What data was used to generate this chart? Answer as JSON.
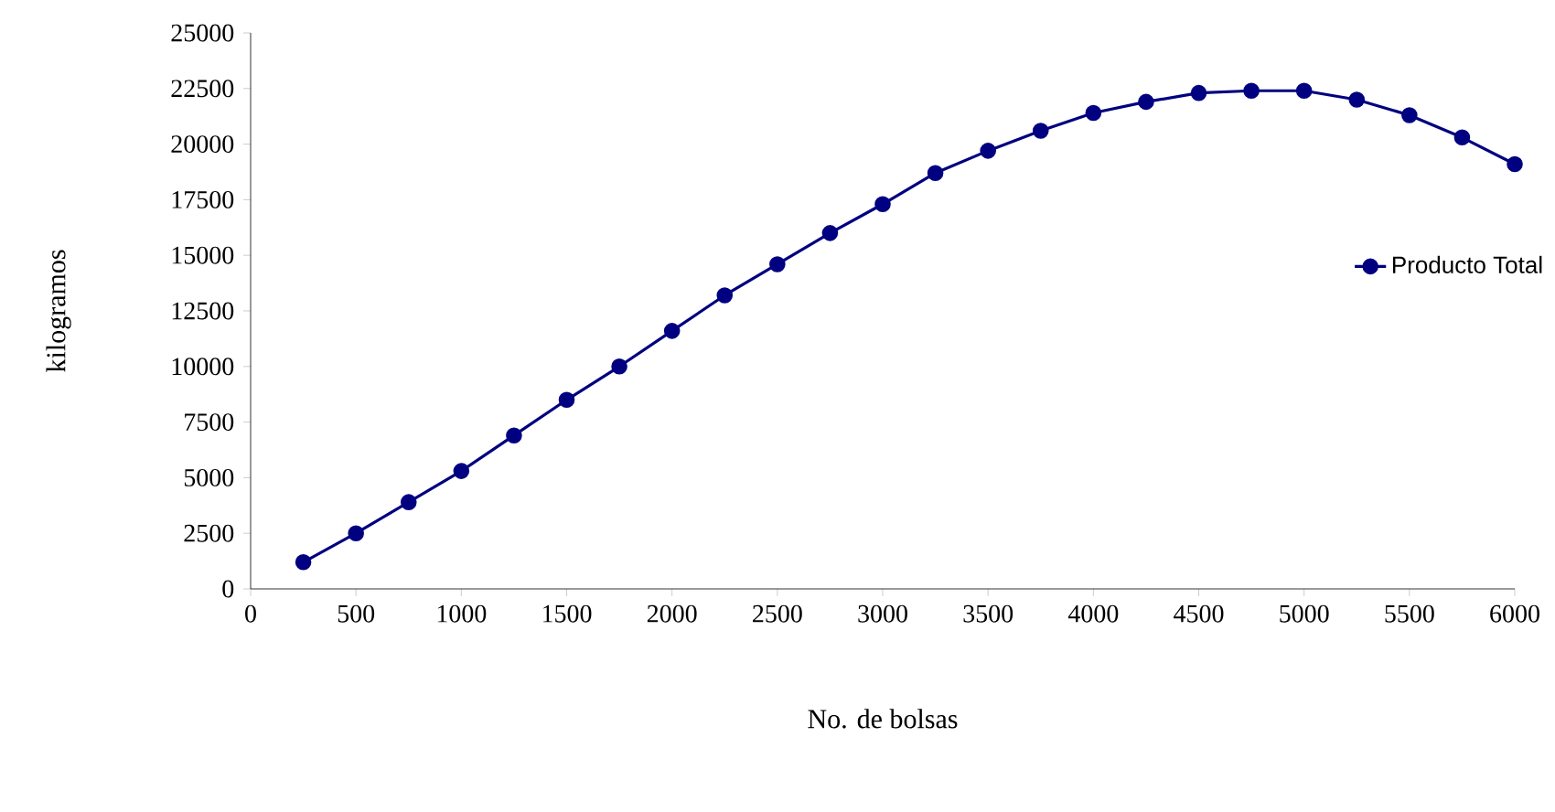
{
  "chart_data": {
    "type": "line",
    "xlabel": "No. de bolsas",
    "ylabel": "kilogramos",
    "x": [
      250,
      500,
      750,
      1000,
      1250,
      1500,
      1750,
      2000,
      2250,
      2500,
      2750,
      3000,
      3250,
      3500,
      3750,
      4000,
      4250,
      4500,
      4750,
      5000,
      5250,
      5500,
      5750,
      6000
    ],
    "series": [
      {
        "name": "Producto Total",
        "color": "#000080",
        "values": [
          1200,
          2500,
          3900,
          5300,
          6900,
          8500,
          10000,
          11600,
          13200,
          14600,
          16000,
          17300,
          18700,
          19700,
          20600,
          21400,
          21900,
          22300,
          22400,
          22400,
          22000,
          21300,
          20300,
          19100
        ]
      }
    ],
    "xlim": [
      0,
      6000
    ],
    "xticks": [
      0,
      500,
      1000,
      1500,
      2000,
      2500,
      3000,
      3500,
      4000,
      4500,
      5000,
      5500,
      6000
    ],
    "ylim": [
      0,
      25000
    ],
    "yticks": [
      0,
      2500,
      5000,
      7500,
      10000,
      12500,
      15000,
      17500,
      20000,
      22500,
      25000
    ],
    "grid": false,
    "legend": "right",
    "marker": "circle",
    "line_style": "solid"
  }
}
